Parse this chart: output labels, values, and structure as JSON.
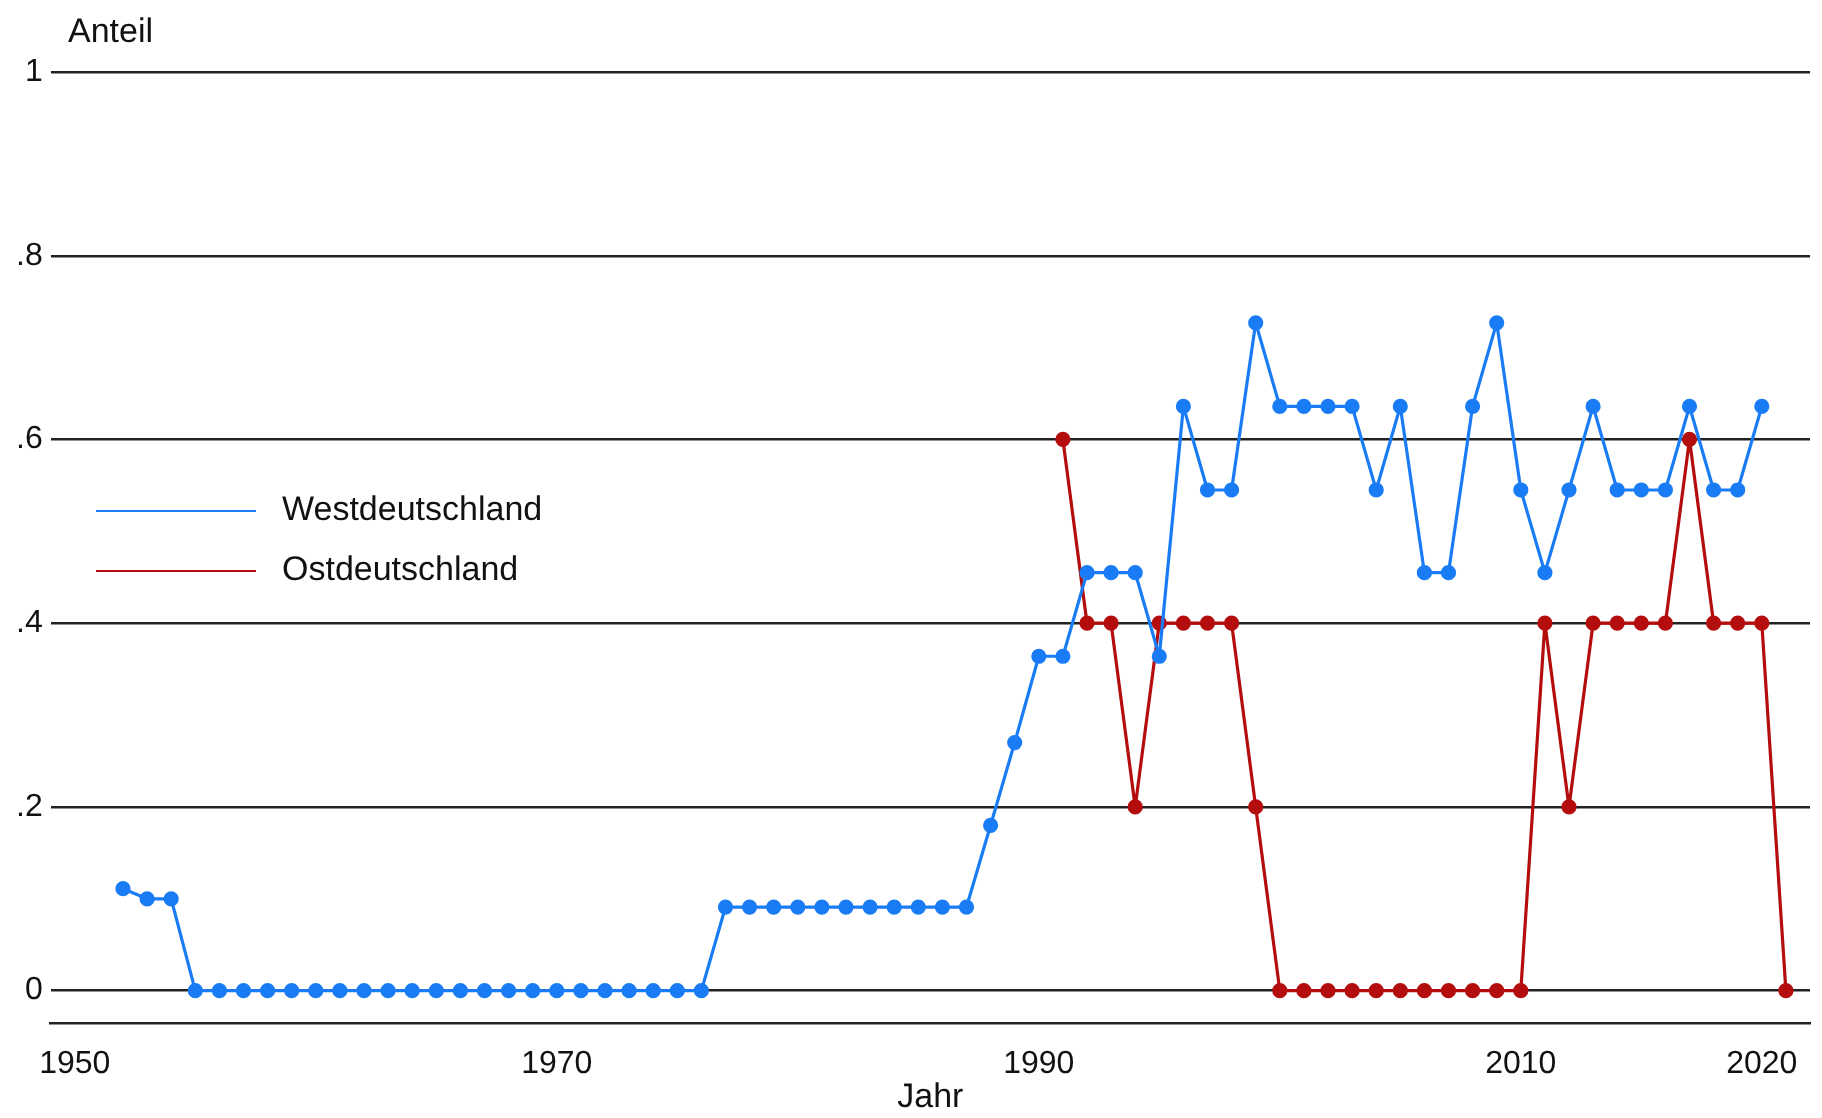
{
  "chart_data": {
    "type": "line",
    "ylabel": "Anteil",
    "xlabel": "Jahr",
    "xlim": [
      1949,
      2022
    ],
    "xticks": [
      1950,
      1970,
      1990,
      2010,
      2020
    ],
    "ylim": [
      -0.035,
      1
    ],
    "yticks": [
      0,
      {
        "value": 0.2,
        "label": ".2"
      },
      {
        "value": 0.4,
        "label": ".4"
      },
      {
        "value": 0.6,
        "label": ".6"
      },
      {
        "value": 0.8,
        "label": ".8"
      },
      1
    ],
    "grid": "y",
    "legend": "left",
    "marker": "circle",
    "line_style": "solid",
    "series": [
      {
        "name": "Westdeutschland",
        "color": "#1a7cf5",
        "x": [
          1952,
          1953,
          1954,
          1955,
          1956,
          1957,
          1958,
          1959,
          1960,
          1961,
          1962,
          1963,
          1964,
          1965,
          1966,
          1967,
          1968,
          1969,
          1970,
          1971,
          1972,
          1973,
          1974,
          1975,
          1976,
          1977,
          1978,
          1979,
          1980,
          1981,
          1982,
          1983,
          1984,
          1985,
          1986,
          1987,
          1988,
          1989,
          1990,
          1991,
          1992,
          1993,
          1994,
          1995,
          1996,
          1997,
          1998,
          1999,
          2000,
          2001,
          2002,
          2003,
          2004,
          2005,
          2006,
          2007,
          2008,
          2009,
          2010,
          2011,
          2012,
          2013,
          2014,
          2015,
          2016,
          2017,
          2018,
          2019,
          2020
        ],
        "values": [
          0.111,
          0.1,
          0.1,
          0,
          0,
          0,
          0,
          0,
          0,
          0,
          0,
          0,
          0,
          0,
          0,
          0,
          0,
          0,
          0,
          0,
          0,
          0,
          0,
          0,
          0,
          0.091,
          0.091,
          0.091,
          0.091,
          0.091,
          0.091,
          0.091,
          0.091,
          0.091,
          0.091,
          0.091,
          0.18,
          0.27,
          0.364,
          0.364,
          0.455,
          0.455,
          0.455,
          0.364,
          0.636,
          0.545,
          0.545,
          0.727,
          0.636,
          0.636,
          0.636,
          0.636,
          0.545,
          0.636,
          0.455,
          0.455,
          0.636,
          0.727,
          0.545,
          0.455,
          0.545,
          0.636,
          0.545,
          0.545,
          0.545,
          0.636,
          0.545,
          0.545,
          0.636
        ]
      },
      {
        "name": "Ostdeutschland",
        "color": "#b40d0d",
        "x": [
          1991,
          1992,
          1993,
          1994,
          1995,
          1996,
          1997,
          1998,
          1999,
          2000,
          2001,
          2002,
          2003,
          2004,
          2005,
          2006,
          2007,
          2008,
          2009,
          2010,
          2011,
          2012,
          2013,
          2014,
          2015,
          2016,
          2017,
          2018,
          2019,
          2020,
          2021
        ],
        "values": [
          0.6,
          0.4,
          0.4,
          0.2,
          0.4,
          0.4,
          0.4,
          0.4,
          0.2,
          0,
          0,
          0,
          0,
          0,
          0,
          0,
          0,
          0,
          0,
          0,
          0.4,
          0.2,
          0.4,
          0.4,
          0.4,
          0.4,
          0.6,
          0.4,
          0.4,
          0.4,
          0
        ]
      }
    ]
  }
}
